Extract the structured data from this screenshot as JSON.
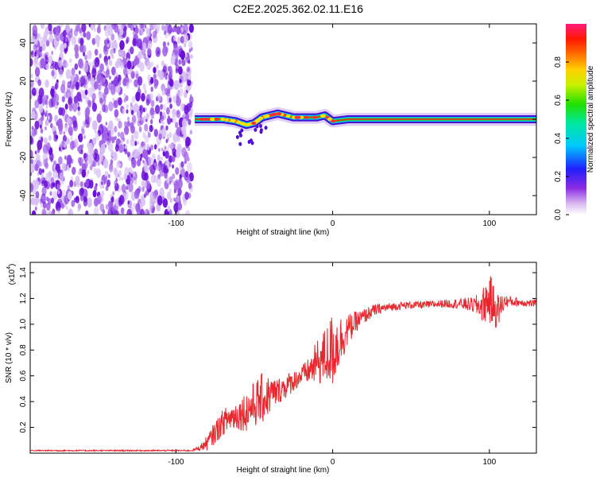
{
  "title": "C2E2.2025.362.02.11.E16",
  "colors": {
    "line": "#e8282e",
    "scatter": "#7a28d8",
    "axis": "#000000"
  },
  "chart_data": [
    {
      "type": "heatmap",
      "xlabel": "Height of straight line (km)",
      "ylabel": "Frequency (Hz)",
      "xlim": [
        -193,
        130
      ],
      "ylim": [
        -50,
        50
      ],
      "xticks": [
        -100,
        0,
        100
      ],
      "yticks": [
        -40,
        -20,
        0,
        20,
        40
      ],
      "noise_region_x": [
        -193,
        -90
      ],
      "signal_track": [
        [
          -88,
          0
        ],
        [
          -80,
          0
        ],
        [
          -70,
          0
        ],
        [
          -62,
          -1
        ],
        [
          -55,
          -3
        ],
        [
          -50,
          -2
        ],
        [
          -45,
          1
        ],
        [
          -40,
          2
        ],
        [
          -35,
          3
        ],
        [
          -30,
          2
        ],
        [
          -25,
          1
        ],
        [
          -20,
          1
        ],
        [
          -10,
          1
        ],
        [
          -5,
          2
        ],
        [
          0,
          -1
        ],
        [
          10,
          0
        ],
        [
          50,
          0
        ],
        [
          100,
          0
        ],
        [
          130,
          0
        ]
      ],
      "colorbar": {
        "label": "Normalized spectral amplitude",
        "ticks": [
          0.0,
          0.2,
          0.4,
          0.6,
          0.8
        ],
        "range": [
          0,
          1
        ]
      }
    },
    {
      "type": "line",
      "xlabel": "Height of straight line (km)",
      "ylabel": "SNR (10 * v/v)",
      "scale_label": "(x10",
      "scale_exp": "4",
      "scale_close": ")",
      "xlim": [
        -193,
        130
      ],
      "ylim": [
        0,
        1.48
      ],
      "xticks": [
        -100,
        0,
        100
      ],
      "yticks": [
        0.2,
        0.4,
        0.6,
        0.8,
        1.0,
        1.2,
        1.4
      ],
      "series": [
        {
          "x": [
            -193,
            -150,
            -110,
            -90,
            -85,
            -80,
            -75,
            -70,
            -65,
            -60,
            -55,
            -50,
            -45,
            -40,
            -35,
            -30,
            -25,
            -20,
            -15,
            -10,
            -5,
            0,
            5,
            10,
            15,
            20,
            25,
            30,
            40,
            50,
            60,
            70,
            80,
            90,
            95,
            100,
            105,
            110,
            120,
            130
          ],
          "values": [
            0.02,
            0.02,
            0.02,
            0.02,
            0.04,
            0.08,
            0.16,
            0.24,
            0.28,
            0.3,
            0.33,
            0.38,
            0.42,
            0.45,
            0.48,
            0.52,
            0.56,
            0.6,
            0.64,
            0.7,
            0.75,
            0.8,
            0.88,
            0.96,
            1.02,
            1.06,
            1.1,
            1.12,
            1.14,
            1.15,
            1.15,
            1.16,
            1.16,
            1.15,
            1.14,
            1.2,
            1.1,
            1.18,
            1.17,
            1.16
          ],
          "noise_amp": [
            0.005,
            0.005,
            0.005,
            0.005,
            0.02,
            0.06,
            0.09,
            0.1,
            0.11,
            0.12,
            0.16,
            0.18,
            0.2,
            0.15,
            0.1,
            0.1,
            0.08,
            0.08,
            0.1,
            0.18,
            0.22,
            0.3,
            0.2,
            0.12,
            0.08,
            0.06,
            0.05,
            0.04,
            0.03,
            0.03,
            0.03,
            0.03,
            0.04,
            0.06,
            0.12,
            0.2,
            0.14,
            0.05,
            0.03,
            0.03
          ]
        }
      ]
    }
  ]
}
